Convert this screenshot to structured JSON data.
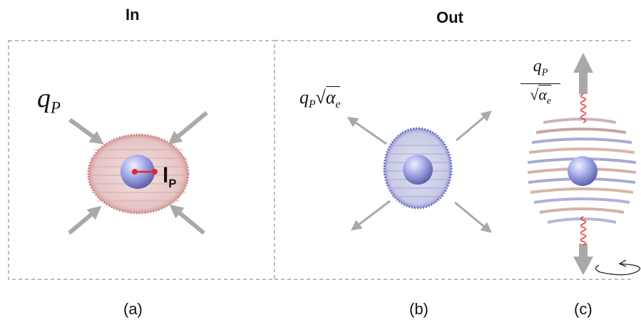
{
  "headers": {
    "in": "In",
    "out": "Out"
  },
  "captions": {
    "a": "(a)",
    "b": "(b)",
    "c": "(c)"
  },
  "labels": {
    "qp_a_main": "q",
    "qp_a_sub": "P",
    "qp_b_main": "q",
    "qp_b_sub": "P",
    "alpha_b_main": "α",
    "alpha_b_sub": "e",
    "qp_c_main": "q",
    "qp_c_sub": "P",
    "alpha_c_main": "α",
    "alpha_c_sub": "e",
    "lp_main": "l",
    "lp_sub": "P"
  },
  "colors": {
    "border_dash": "#a6a6a6",
    "arrow": "#a9a9a9",
    "red_shell": "#c98585",
    "blue_shell": "#6e72c8",
    "sphere": "#aab0ec",
    "spring": "#e63b3b",
    "dot": "#e8262b"
  }
}
